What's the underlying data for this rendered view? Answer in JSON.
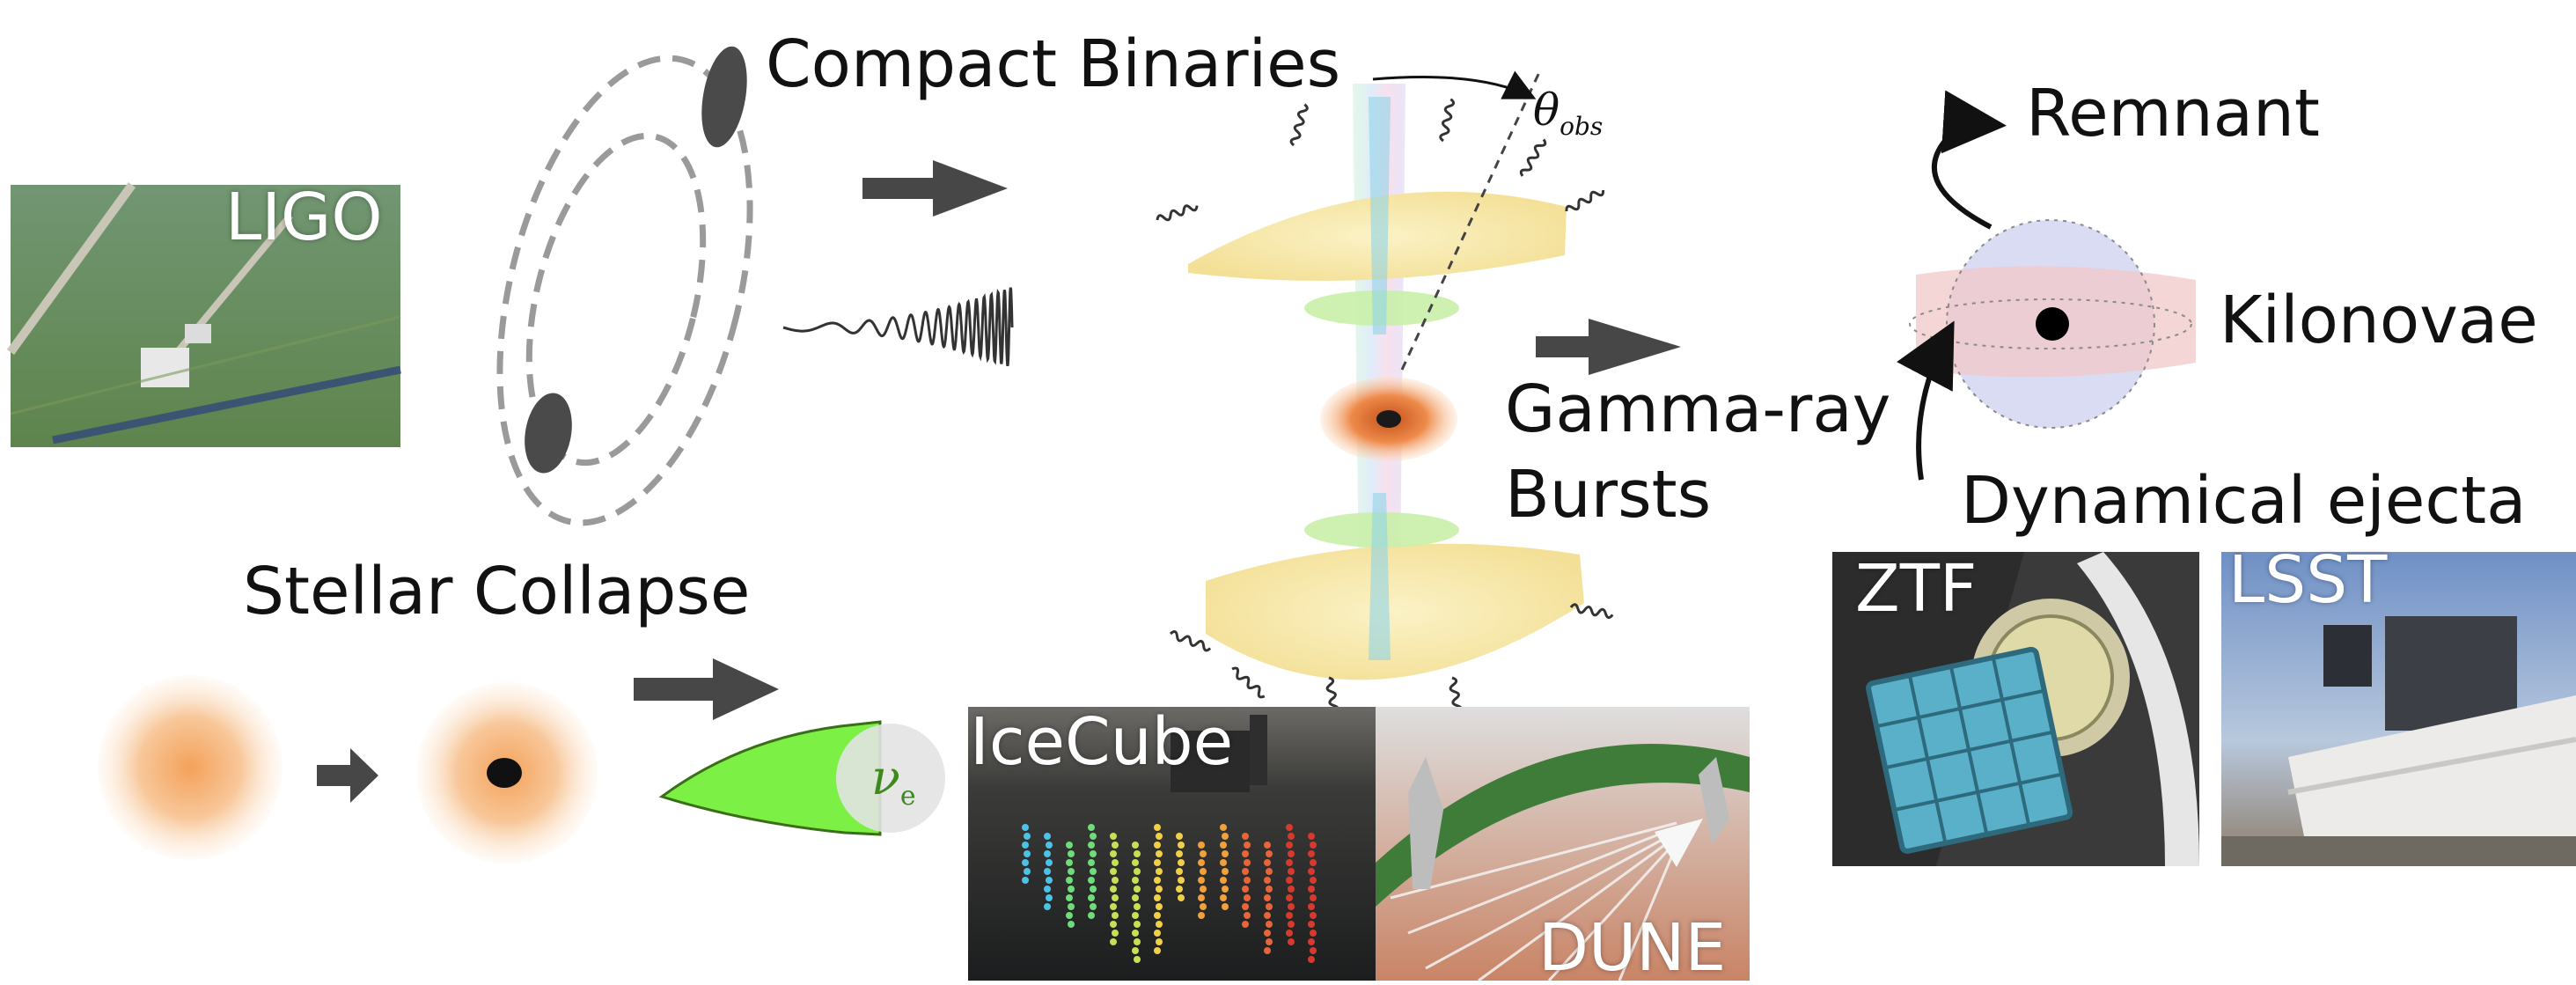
{
  "labels": {
    "compact_binaries": "Compact Binaries",
    "theta_symbol": "θ",
    "theta_sub": "obs",
    "remnant": "Remnant",
    "kilonovae": "Kilonovae",
    "gamma_ray_line1": "Gamma-ray",
    "gamma_ray_line2": "Bursts",
    "dynamical_ejecta": "Dynamical ejecta",
    "stellar_collapse": "Stellar Collapse",
    "neutrino_symbol": "ν",
    "neutrino_sub": "e"
  },
  "photos": {
    "ligo": "LIGO",
    "ztf": "ZTF",
    "lsst": "LSST",
    "icecube": "IceCube",
    "dune": "DUNE"
  },
  "colors": {
    "arrow": "#474747",
    "ejecta_yellow": "#f6e7a6",
    "disk_green": "#c9f0a8",
    "accretion_orange": "#e8742e",
    "kilonova_pink": "#f2c8c8",
    "kilonova_blue": "#d4d6f2",
    "stellar_orange": "#f5a75e",
    "neutrino_green": "#7cf044"
  }
}
